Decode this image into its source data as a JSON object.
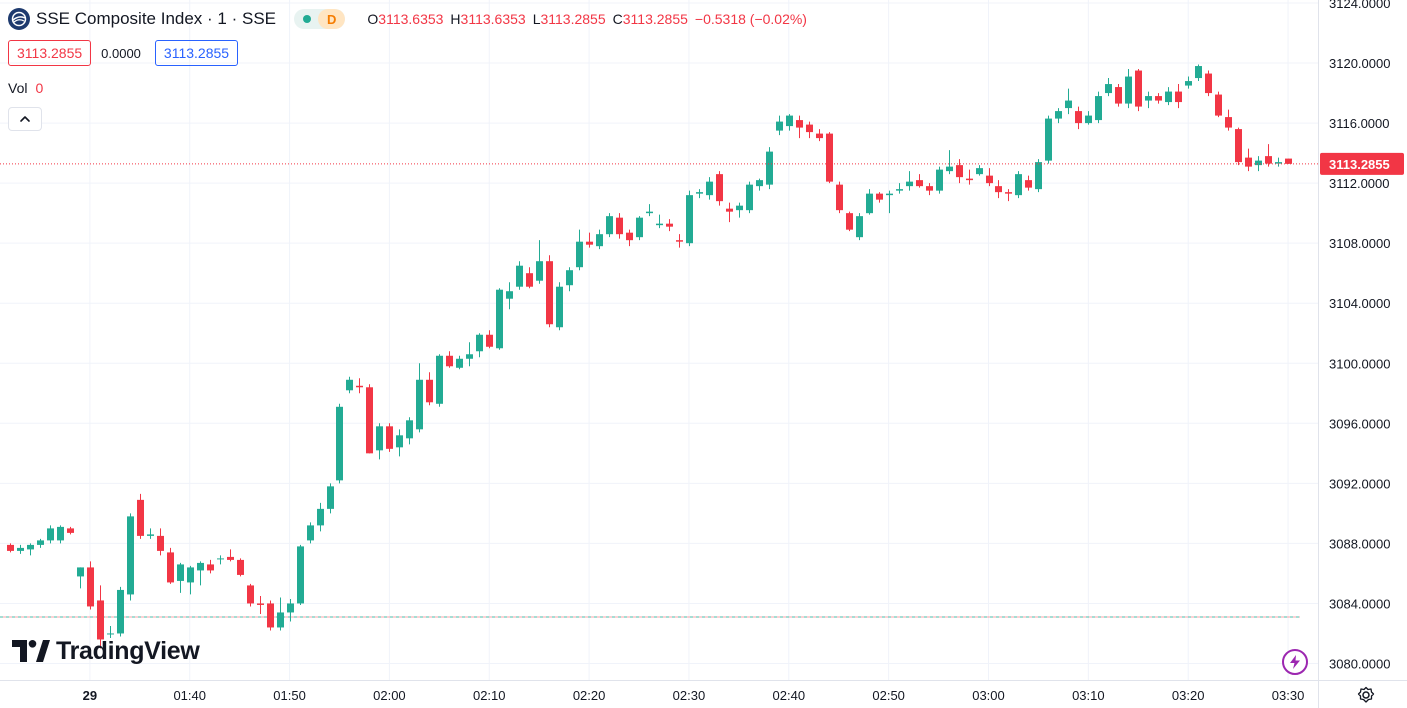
{
  "header": {
    "symbol_title": "SSE Composite Index · 1 · SSE",
    "status_letter": "D",
    "ohlc": {
      "o_label": "O",
      "o_value": "3113.6353",
      "h_label": "H",
      "h_value": "3113.6353",
      "l_label": "L",
      "l_value": "3113.2855",
      "c_label": "C",
      "c_value": "3113.2855",
      "change": "−0.5318 (−0.02%)"
    },
    "sell_price": "3113.2855",
    "spread": "0.0000",
    "buy_price": "3113.2855",
    "volume_label": "Vol",
    "volume_value": "0"
  },
  "branding": {
    "logo_text": "TradingView"
  },
  "icons": {
    "symbol_logo": "globe-icon",
    "collapse": "chevron-up-icon",
    "flash": "lightning-icon",
    "settings": "gear-icon",
    "tv_logo": "tradingview-logo"
  },
  "colors": {
    "up": "#22ab94",
    "down": "#f23645",
    "grid": "#f0f3fa",
    "last_price_line": "#f23645",
    "base_line_teal": "#22ab94",
    "text": "#131722"
  },
  "chart_data": {
    "type": "candlestick",
    "title": "SSE Composite Index · 1 · SSE",
    "interval_minutes": 1,
    "y_axis_side": "right",
    "ylim": [
      3078.9,
      3124.2
    ],
    "y_ticks": [
      "3080.0000",
      "3084.0000",
      "3088.0000",
      "3092.0000",
      "3096.0000",
      "3100.0000",
      "3104.0000",
      "3108.0000",
      "3112.0000",
      "3116.0000",
      "3120.0000",
      "3124.0000"
    ],
    "x_range": [
      "01:21",
      "03:33"
    ],
    "x_ticks": [
      {
        "time": "01:30",
        "label": "29",
        "bold": true
      },
      {
        "time": "01:40",
        "label": "01:40"
      },
      {
        "time": "01:50",
        "label": "01:50"
      },
      {
        "time": "02:00",
        "label": "02:00"
      },
      {
        "time": "02:10",
        "label": "02:10"
      },
      {
        "time": "02:20",
        "label": "02:20"
      },
      {
        "time": "02:30",
        "label": "02:30"
      },
      {
        "time": "02:40",
        "label": "02:40"
      },
      {
        "time": "02:50",
        "label": "02:50"
      },
      {
        "time": "03:00",
        "label": "03:00"
      },
      {
        "time": "03:10",
        "label": "03:10"
      },
      {
        "time": "03:20",
        "label": "03:20"
      },
      {
        "time": "03:30",
        "label": "03:30"
      }
    ],
    "last_price": 3113.2855,
    "last_price_label": "3113.2855",
    "base_line": 3083.1,
    "grid": true,
    "candles": [
      {
        "t": "01:22",
        "o": 3087.9,
        "h": 3088.0,
        "l": 3087.4,
        "c": 3087.5
      },
      {
        "t": "01:23",
        "o": 3087.5,
        "h": 3087.9,
        "l": 3087.3,
        "c": 3087.7
      },
      {
        "t": "01:24",
        "o": 3087.6,
        "h": 3088.0,
        "l": 3087.2,
        "c": 3087.9
      },
      {
        "t": "01:25",
        "o": 3087.9,
        "h": 3088.3,
        "l": 3087.7,
        "c": 3088.2
      },
      {
        "t": "01:26",
        "o": 3088.2,
        "h": 3089.2,
        "l": 3088.0,
        "c": 3089.0
      },
      {
        "t": "01:27",
        "o": 3088.2,
        "h": 3089.2,
        "l": 3088.0,
        "c": 3089.1
      },
      {
        "t": "01:28",
        "o": 3089.0,
        "h": 3089.1,
        "l": 3088.6,
        "c": 3088.7
      },
      {
        "t": "01:29",
        "o": 3085.8,
        "h": 3086.4,
        "l": 3085.0,
        "c": 3086.4
      },
      {
        "t": "01:30",
        "o": 3086.4,
        "h": 3086.8,
        "l": 3083.6,
        "c": 3083.8
      },
      {
        "t": "01:31",
        "o": 3084.2,
        "h": 3085.2,
        "l": 3081.0,
        "c": 3081.6
      },
      {
        "t": "01:32",
        "o": 3082.0,
        "h": 3082.5,
        "l": 3081.7,
        "c": 3082.0
      },
      {
        "t": "01:33",
        "o": 3082.0,
        "h": 3085.1,
        "l": 3081.8,
        "c": 3084.9
      },
      {
        "t": "01:34",
        "o": 3084.6,
        "h": 3090.0,
        "l": 3084.2,
        "c": 3089.8
      },
      {
        "t": "01:35",
        "o": 3090.9,
        "h": 3091.3,
        "l": 3088.3,
        "c": 3088.5
      },
      {
        "t": "01:36",
        "o": 3088.5,
        "h": 3089.0,
        "l": 3088.3,
        "c": 3088.6
      },
      {
        "t": "01:37",
        "o": 3088.5,
        "h": 3089.0,
        "l": 3087.2,
        "c": 3087.5
      },
      {
        "t": "01:38",
        "o": 3087.4,
        "h": 3087.7,
        "l": 3085.3,
        "c": 3085.4
      },
      {
        "t": "01:39",
        "o": 3085.5,
        "h": 3086.7,
        "l": 3084.7,
        "c": 3086.6
      },
      {
        "t": "01:40",
        "o": 3085.4,
        "h": 3086.5,
        "l": 3084.6,
        "c": 3086.4
      },
      {
        "t": "01:41",
        "o": 3086.2,
        "h": 3086.8,
        "l": 3085.2,
        "c": 3086.7
      },
      {
        "t": "01:42",
        "o": 3086.6,
        "h": 3086.9,
        "l": 3086.0,
        "c": 3086.2
      },
      {
        "t": "01:43",
        "o": 3087.0,
        "h": 3087.2,
        "l": 3086.6,
        "c": 3087.0
      },
      {
        "t": "01:44",
        "o": 3087.1,
        "h": 3087.6,
        "l": 3086.8,
        "c": 3086.9
      },
      {
        "t": "01:45",
        "o": 3086.9,
        "h": 3087.0,
        "l": 3085.8,
        "c": 3085.9
      },
      {
        "t": "01:46",
        "o": 3085.2,
        "h": 3085.3,
        "l": 3083.8,
        "c": 3084.0
      },
      {
        "t": "01:47",
        "o": 3084.0,
        "h": 3084.5,
        "l": 3083.3,
        "c": 3083.9
      },
      {
        "t": "01:48",
        "o": 3084.0,
        "h": 3084.2,
        "l": 3082.2,
        "c": 3082.4
      },
      {
        "t": "01:49",
        "o": 3082.4,
        "h": 3084.4,
        "l": 3082.2,
        "c": 3083.4
      },
      {
        "t": "01:50",
        "o": 3083.4,
        "h": 3084.3,
        "l": 3082.8,
        "c": 3084.0
      },
      {
        "t": "01:51",
        "o": 3084.0,
        "h": 3087.9,
        "l": 3083.9,
        "c": 3087.8
      },
      {
        "t": "01:52",
        "o": 3088.2,
        "h": 3089.4,
        "l": 3088.0,
        "c": 3089.2
      },
      {
        "t": "01:53",
        "o": 3089.2,
        "h": 3090.7,
        "l": 3088.8,
        "c": 3090.3
      },
      {
        "t": "01:54",
        "o": 3090.3,
        "h": 3092.0,
        "l": 3090.0,
        "c": 3091.8
      },
      {
        "t": "01:55",
        "o": 3092.2,
        "h": 3097.3,
        "l": 3092.0,
        "c": 3097.1
      },
      {
        "t": "01:56",
        "o": 3098.2,
        "h": 3099.1,
        "l": 3098.0,
        "c": 3098.9
      },
      {
        "t": "01:57",
        "o": 3098.5,
        "h": 3099.0,
        "l": 3098.0,
        "c": 3098.4
      },
      {
        "t": "01:58",
        "o": 3098.4,
        "h": 3098.6,
        "l": 3094.0,
        "c": 3094.0
      },
      {
        "t": "01:59",
        "o": 3094.2,
        "h": 3096.0,
        "l": 3093.6,
        "c": 3095.8
      },
      {
        "t": "02:00",
        "o": 3095.8,
        "h": 3096.0,
        "l": 3094.1,
        "c": 3094.3
      },
      {
        "t": "02:01",
        "o": 3094.4,
        "h": 3095.6,
        "l": 3093.8,
        "c": 3095.2
      },
      {
        "t": "02:02",
        "o": 3095.0,
        "h": 3096.4,
        "l": 3094.6,
        "c": 3096.2
      },
      {
        "t": "02:03",
        "o": 3095.6,
        "h": 3100.0,
        "l": 3095.4,
        "c": 3098.9
      },
      {
        "t": "02:04",
        "o": 3098.9,
        "h": 3099.4,
        "l": 3097.2,
        "c": 3097.4
      },
      {
        "t": "02:05",
        "o": 3097.3,
        "h": 3100.6,
        "l": 3097.1,
        "c": 3100.5
      },
      {
        "t": "02:06",
        "o": 3100.5,
        "h": 3100.8,
        "l": 3099.7,
        "c": 3099.8
      },
      {
        "t": "02:07",
        "o": 3099.7,
        "h": 3100.5,
        "l": 3099.6,
        "c": 3100.3
      },
      {
        "t": "02:08",
        "o": 3100.3,
        "h": 3101.4,
        "l": 3099.8,
        "c": 3100.6
      },
      {
        "t": "02:09",
        "o": 3100.8,
        "h": 3102.0,
        "l": 3100.4,
        "c": 3101.9
      },
      {
        "t": "02:10",
        "o": 3101.9,
        "h": 3102.2,
        "l": 3101.0,
        "c": 3101.1
      },
      {
        "t": "02:11",
        "o": 3101.0,
        "h": 3105.0,
        "l": 3100.9,
        "c": 3104.9
      },
      {
        "t": "02:12",
        "o": 3104.3,
        "h": 3105.4,
        "l": 3103.6,
        "c": 3104.8
      },
      {
        "t": "02:13",
        "o": 3105.1,
        "h": 3106.8,
        "l": 3104.9,
        "c": 3106.5
      },
      {
        "t": "02:14",
        "o": 3106.0,
        "h": 3106.4,
        "l": 3105.0,
        "c": 3105.1
      },
      {
        "t": "02:15",
        "o": 3105.5,
        "h": 3108.2,
        "l": 3105.3,
        "c": 3106.8
      },
      {
        "t": "02:16",
        "o": 3106.8,
        "h": 3107.2,
        "l": 3102.4,
        "c": 3102.6
      },
      {
        "t": "02:17",
        "o": 3102.4,
        "h": 3105.4,
        "l": 3102.2,
        "c": 3105.1
      },
      {
        "t": "02:18",
        "o": 3105.2,
        "h": 3106.4,
        "l": 3104.8,
        "c": 3106.2
      },
      {
        "t": "02:19",
        "o": 3106.4,
        "h": 3108.9,
        "l": 3106.2,
        "c": 3108.1
      },
      {
        "t": "02:20",
        "o": 3108.1,
        "h": 3108.7,
        "l": 3107.7,
        "c": 3107.9
      },
      {
        "t": "02:21",
        "o": 3107.8,
        "h": 3108.9,
        "l": 3107.6,
        "c": 3108.6
      },
      {
        "t": "02:22",
        "o": 3108.6,
        "h": 3110.0,
        "l": 3108.4,
        "c": 3109.8
      },
      {
        "t": "02:23",
        "o": 3109.7,
        "h": 3110.0,
        "l": 3108.3,
        "c": 3108.6
      },
      {
        "t": "02:24",
        "o": 3108.7,
        "h": 3108.9,
        "l": 3107.8,
        "c": 3108.2
      },
      {
        "t": "02:25",
        "o": 3108.4,
        "h": 3109.8,
        "l": 3108.2,
        "c": 3109.7
      },
      {
        "t": "02:26",
        "o": 3110.0,
        "h": 3110.6,
        "l": 3109.8,
        "c": 3110.1
      },
      {
        "t": "02:27",
        "o": 3109.2,
        "h": 3109.9,
        "l": 3109.0,
        "c": 3109.3
      },
      {
        "t": "02:28",
        "o": 3109.3,
        "h": 3109.6,
        "l": 3108.8,
        "c": 3109.1
      },
      {
        "t": "02:29",
        "o": 3108.2,
        "h": 3108.6,
        "l": 3107.7,
        "c": 3108.1
      },
      {
        "t": "02:30",
        "o": 3108.0,
        "h": 3111.5,
        "l": 3107.8,
        "c": 3111.2
      },
      {
        "t": "02:31",
        "o": 3111.3,
        "h": 3111.6,
        "l": 3111.0,
        "c": 3111.4
      },
      {
        "t": "02:32",
        "o": 3111.2,
        "h": 3112.4,
        "l": 3110.9,
        "c": 3112.1
      },
      {
        "t": "02:33",
        "o": 3112.6,
        "h": 3112.8,
        "l": 3110.5,
        "c": 3110.8
      },
      {
        "t": "02:34",
        "o": 3110.3,
        "h": 3110.7,
        "l": 3109.4,
        "c": 3110.1
      },
      {
        "t": "02:35",
        "o": 3110.2,
        "h": 3110.7,
        "l": 3109.7,
        "c": 3110.5
      },
      {
        "t": "02:36",
        "o": 3110.2,
        "h": 3112.1,
        "l": 3110.0,
        "c": 3111.9
      },
      {
        "t": "02:37",
        "o": 3111.8,
        "h": 3112.3,
        "l": 3111.5,
        "c": 3112.2
      },
      {
        "t": "02:38",
        "o": 3111.9,
        "h": 3114.4,
        "l": 3111.6,
        "c": 3114.1
      },
      {
        "t": "02:39",
        "o": 3115.5,
        "h": 3116.5,
        "l": 3115.2,
        "c": 3116.1
      },
      {
        "t": "02:40",
        "o": 3115.8,
        "h": 3116.6,
        "l": 3115.5,
        "c": 3116.5
      },
      {
        "t": "02:41",
        "o": 3116.2,
        "h": 3116.5,
        "l": 3115.0,
        "c": 3115.7
      },
      {
        "t": "02:42",
        "o": 3115.9,
        "h": 3116.1,
        "l": 3115.0,
        "c": 3115.4
      },
      {
        "t": "02:43",
        "o": 3115.3,
        "h": 3115.6,
        "l": 3114.8,
        "c": 3115.0
      },
      {
        "t": "02:44",
        "o": 3115.3,
        "h": 3115.4,
        "l": 3112.0,
        "c": 3112.1
      },
      {
        "t": "02:45",
        "o": 3111.9,
        "h": 3112.1,
        "l": 3110.0,
        "c": 3110.2
      },
      {
        "t": "02:46",
        "o": 3110.0,
        "h": 3110.1,
        "l": 3108.8,
        "c": 3108.9
      },
      {
        "t": "02:47",
        "o": 3108.4,
        "h": 3110.0,
        "l": 3108.2,
        "c": 3109.8
      },
      {
        "t": "02:48",
        "o": 3110.0,
        "h": 3111.6,
        "l": 3109.9,
        "c": 3111.3
      },
      {
        "t": "02:49",
        "o": 3111.3,
        "h": 3111.4,
        "l": 3110.7,
        "c": 3110.9
      },
      {
        "t": "02:50",
        "o": 3111.2,
        "h": 3111.5,
        "l": 3110.0,
        "c": 3111.3
      },
      {
        "t": "02:51",
        "o": 3111.5,
        "h": 3112.0,
        "l": 3111.3,
        "c": 3111.6
      },
      {
        "t": "02:52",
        "o": 3111.8,
        "h": 3112.8,
        "l": 3111.5,
        "c": 3112.1
      },
      {
        "t": "02:53",
        "o": 3112.2,
        "h": 3112.6,
        "l": 3111.7,
        "c": 3111.8
      },
      {
        "t": "02:54",
        "o": 3111.8,
        "h": 3112.0,
        "l": 3111.2,
        "c": 3111.5
      },
      {
        "t": "02:55",
        "o": 3111.5,
        "h": 3113.1,
        "l": 3111.3,
        "c": 3112.9
      },
      {
        "t": "02:56",
        "o": 3112.8,
        "h": 3114.2,
        "l": 3112.6,
        "c": 3113.1
      },
      {
        "t": "02:57",
        "o": 3113.2,
        "h": 3113.6,
        "l": 3112.0,
        "c": 3112.4
      },
      {
        "t": "02:58",
        "o": 3112.3,
        "h": 3112.9,
        "l": 3111.9,
        "c": 3112.2
      },
      {
        "t": "02:59",
        "o": 3112.6,
        "h": 3113.2,
        "l": 3112.5,
        "c": 3113.0
      },
      {
        "t": "03:00",
        "o": 3112.5,
        "h": 3113.0,
        "l": 3111.8,
        "c": 3112.0
      },
      {
        "t": "03:01",
        "o": 3111.8,
        "h": 3112.2,
        "l": 3111.0,
        "c": 3111.4
      },
      {
        "t": "03:02",
        "o": 3111.4,
        "h": 3111.6,
        "l": 3110.8,
        "c": 3111.3
      },
      {
        "t": "03:03",
        "o": 3111.2,
        "h": 3112.8,
        "l": 3111.0,
        "c": 3112.6
      },
      {
        "t": "03:04",
        "o": 3112.2,
        "h": 3112.5,
        "l": 3111.5,
        "c": 3111.7
      },
      {
        "t": "03:05",
        "o": 3111.6,
        "h": 3113.6,
        "l": 3111.4,
        "c": 3113.4
      },
      {
        "t": "03:06",
        "o": 3113.5,
        "h": 3116.5,
        "l": 3113.3,
        "c": 3116.3
      },
      {
        "t": "03:07",
        "o": 3116.3,
        "h": 3117.0,
        "l": 3116.0,
        "c": 3116.8
      },
      {
        "t": "03:08",
        "o": 3117.0,
        "h": 3118.3,
        "l": 3116.6,
        "c": 3117.5
      },
      {
        "t": "03:09",
        "o": 3116.8,
        "h": 3117.1,
        "l": 3115.6,
        "c": 3116.0
      },
      {
        "t": "03:10",
        "o": 3116.0,
        "h": 3116.8,
        "l": 3115.9,
        "c": 3116.5
      },
      {
        "t": "03:11",
        "o": 3116.2,
        "h": 3118.1,
        "l": 3116.0,
        "c": 3117.8
      },
      {
        "t": "03:12",
        "o": 3118.0,
        "h": 3119.0,
        "l": 3117.8,
        "c": 3118.6
      },
      {
        "t": "03:13",
        "o": 3118.4,
        "h": 3118.6,
        "l": 3117.1,
        "c": 3117.3
      },
      {
        "t": "03:14",
        "o": 3117.3,
        "h": 3119.6,
        "l": 3117.0,
        "c": 3119.1
      },
      {
        "t": "03:15",
        "o": 3119.5,
        "h": 3119.6,
        "l": 3116.8,
        "c": 3117.1
      },
      {
        "t": "03:16",
        "o": 3117.5,
        "h": 3118.1,
        "l": 3117.0,
        "c": 3117.8
      },
      {
        "t": "03:17",
        "o": 3117.8,
        "h": 3118.0,
        "l": 3117.3,
        "c": 3117.5
      },
      {
        "t": "03:18",
        "o": 3117.4,
        "h": 3118.4,
        "l": 3117.2,
        "c": 3118.1
      },
      {
        "t": "03:19",
        "o": 3118.1,
        "h": 3118.6,
        "l": 3117.0,
        "c": 3117.4
      },
      {
        "t": "03:20",
        "o": 3118.5,
        "h": 3119.1,
        "l": 3118.3,
        "c": 3118.8
      },
      {
        "t": "03:21",
        "o": 3119.0,
        "h": 3119.9,
        "l": 3118.8,
        "c": 3119.8
      },
      {
        "t": "03:22",
        "o": 3119.3,
        "h": 3119.5,
        "l": 3117.8,
        "c": 3118.0
      },
      {
        "t": "03:23",
        "o": 3117.9,
        "h": 3118.1,
        "l": 3116.4,
        "c": 3116.5
      },
      {
        "t": "03:24",
        "o": 3116.4,
        "h": 3116.9,
        "l": 3115.5,
        "c": 3115.7
      },
      {
        "t": "03:25",
        "o": 3115.6,
        "h": 3115.7,
        "l": 3113.2,
        "c": 3113.4
      },
      {
        "t": "03:26",
        "o": 3113.7,
        "h": 3114.3,
        "l": 3112.8,
        "c": 3113.1
      },
      {
        "t": "03:27",
        "o": 3113.2,
        "h": 3113.8,
        "l": 3112.8,
        "c": 3113.5
      },
      {
        "t": "03:28",
        "o": 3113.8,
        "h": 3114.6,
        "l": 3113.1,
        "c": 3113.3
      },
      {
        "t": "03:29",
        "o": 3113.3,
        "h": 3113.7,
        "l": 3113.1,
        "c": 3113.4
      },
      {
        "t": "03:30",
        "o": 3113.6353,
        "h": 3113.6353,
        "l": 3113.2855,
        "c": 3113.2855
      }
    ]
  }
}
